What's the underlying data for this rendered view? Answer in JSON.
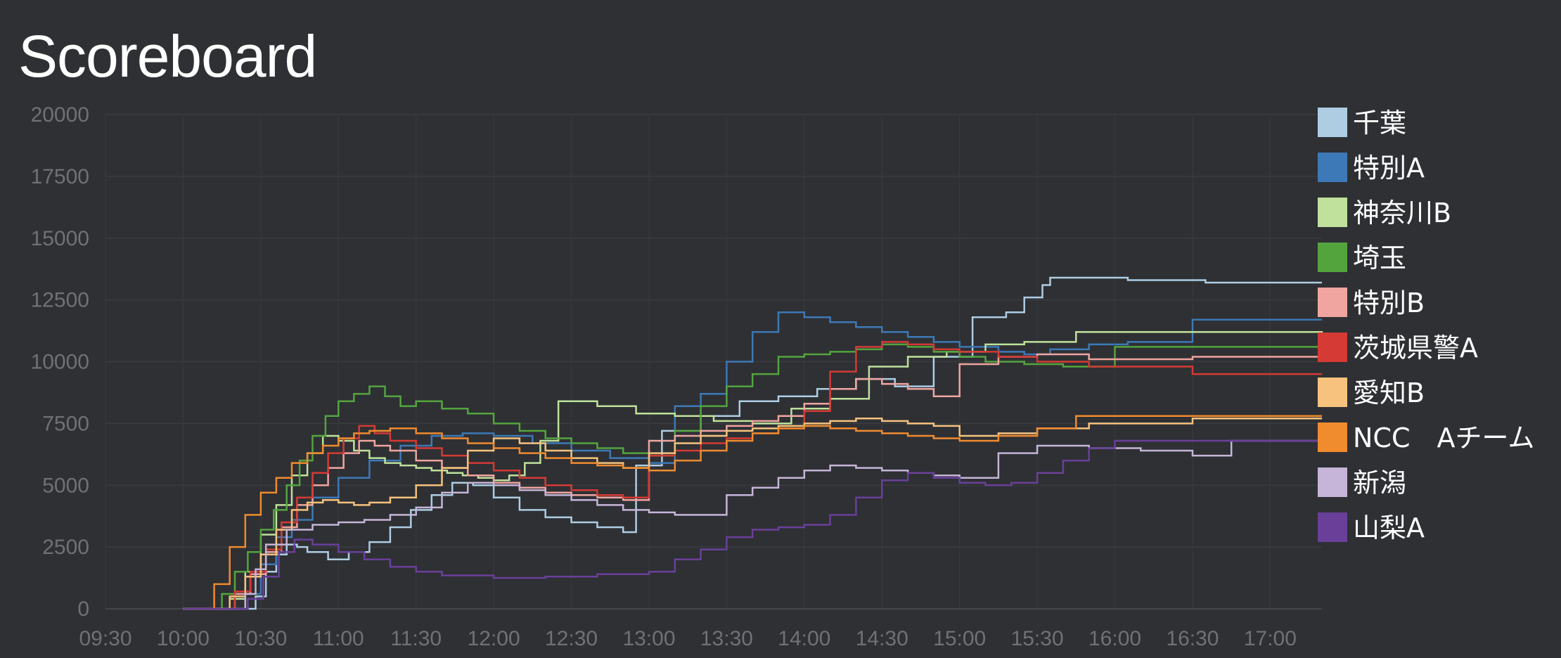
{
  "page": {
    "title": "Scoreboard"
  },
  "chart_data": {
    "type": "line",
    "title": "",
    "xlabel": "",
    "ylabel": "",
    "x_unit": "minutes after 00:00",
    "xlim": [
      570,
      1040
    ],
    "ylim": [
      0,
      20000
    ],
    "x_ticks": [
      570,
      600,
      630,
      660,
      690,
      720,
      750,
      780,
      810,
      840,
      870,
      900,
      930,
      960,
      990,
      1020
    ],
    "x_tick_labels": [
      "09:30",
      "10:00",
      "10:30",
      "11:00",
      "11:30",
      "12:00",
      "12:30",
      "13:00",
      "13:30",
      "14:00",
      "14:30",
      "15:00",
      "15:30",
      "16:00",
      "16:30",
      "17:00"
    ],
    "y_ticks": [
      0,
      2500,
      5000,
      7500,
      10000,
      12500,
      15000,
      17500,
      20000
    ],
    "y_tick_labels": [
      "0",
      "2500",
      "5000",
      "7500",
      "10000",
      "12500",
      "15000",
      "17500",
      "20000"
    ],
    "grid": true,
    "legend_position": "right",
    "step": true,
    "series": [
      {
        "name": "千葉",
        "color": "#aecde3",
        "x": [
          600,
          628,
          632,
          636,
          640,
          644,
          648,
          656,
          664,
          672,
          680,
          688,
          696,
          704,
          712,
          720,
          730,
          740,
          750,
          760,
          770,
          775,
          785,
          800,
          815,
          830,
          845,
          860,
          875,
          890,
          905,
          918,
          925,
          932,
          935,
          945,
          965,
          995,
          1040
        ],
        "y": [
          0,
          500,
          1500,
          2200,
          2600,
          2500,
          2300,
          2000,
          2300,
          2700,
          3300,
          4000,
          4600,
          5100,
          5000,
          4500,
          4000,
          3700,
          3500,
          3300,
          3100,
          5800,
          7200,
          7800,
          8400,
          8600,
          8900,
          9300,
          9000,
          10200,
          11800,
          12000,
          12600,
          13100,
          13400,
          13400,
          13300,
          13200,
          13200
        ]
      },
      {
        "name": "特別A",
        "color": "#3d79b6",
        "x": [
          600,
          624,
          630,
          636,
          642,
          650,
          660,
          672,
          684,
          696,
          708,
          720,
          735,
          750,
          765,
          780,
          790,
          800,
          810,
          820,
          830,
          840,
          850,
          860,
          870,
          880,
          890,
          900,
          915,
          925,
          935,
          950,
          965,
          990,
          1040
        ],
        "y": [
          0,
          600,
          1800,
          2900,
          3600,
          4500,
          5300,
          6000,
          6600,
          7000,
          7100,
          7000,
          6700,
          6400,
          6100,
          5900,
          8200,
          8700,
          10000,
          11200,
          12000,
          11800,
          11600,
          11400,
          11200,
          11000,
          10800,
          10600,
          10400,
          10300,
          10500,
          10700,
          10800,
          11700,
          11700
        ]
      },
      {
        "name": "神奈川B",
        "color": "#bfe19b",
        "x": [
          600,
          618,
          624,
          630,
          636,
          642,
          648,
          654,
          660,
          666,
          672,
          678,
          684,
          690,
          696,
          702,
          708,
          714,
          720,
          726,
          732,
          738,
          745,
          760,
          775,
          790,
          805,
          820,
          835,
          850,
          865,
          880,
          895,
          910,
          925,
          945,
          1040
        ],
        "y": [
          0,
          400,
          1500,
          3000,
          4200,
          5400,
          6300,
          7000,
          6800,
          6400,
          6100,
          5900,
          5800,
          5700,
          5600,
          5500,
          5400,
          5300,
          5200,
          5400,
          5900,
          6800,
          8400,
          8200,
          7900,
          7800,
          7600,
          7500,
          8100,
          8500,
          9800,
          10200,
          10400,
          10700,
          10800,
          11200,
          11000
        ]
      },
      {
        "name": "埼玉",
        "color": "#54a43e",
        "x": [
          600,
          615,
          620,
          625,
          630,
          635,
          640,
          645,
          650,
          655,
          660,
          666,
          672,
          678,
          684,
          690,
          700,
          710,
          720,
          730,
          740,
          750,
          760,
          770,
          780,
          790,
          800,
          810,
          820,
          830,
          840,
          850,
          860,
          870,
          880,
          890,
          900,
          910,
          925,
          940,
          960,
          990,
          1040
        ],
        "y": [
          0,
          600,
          1500,
          2300,
          3200,
          4000,
          5000,
          6000,
          7000,
          7800,
          8400,
          8700,
          9000,
          8600,
          8200,
          8400,
          8100,
          7900,
          7500,
          7200,
          6900,
          6700,
          6500,
          6300,
          6200,
          7200,
          8200,
          9000,
          9500,
          10200,
          10300,
          10400,
          10500,
          10700,
          10600,
          10400,
          10200,
          10000,
          9900,
          9800,
          10600,
          10600,
          10600
        ]
      },
      {
        "name": "特別B",
        "color": "#f0a5a0",
        "x": [
          600,
          620,
          626,
          632,
          638,
          644,
          650,
          656,
          662,
          668,
          674,
          680,
          690,
          700,
          710,
          720,
          730,
          740,
          750,
          760,
          770,
          780,
          790,
          800,
          810,
          820,
          830,
          840,
          850,
          860,
          870,
          880,
          890,
          900,
          915,
          930,
          950,
          990,
          1040
        ],
        "y": [
          0,
          600,
          1400,
          2300,
          3300,
          4200,
          5000,
          5700,
          6300,
          6800,
          6600,
          6400,
          6000,
          5700,
          5400,
          5100,
          4900,
          4700,
          4600,
          4500,
          4400,
          6800,
          7000,
          7200,
          7400,
          7600,
          7800,
          8300,
          8900,
          9300,
          9100,
          8900,
          8600,
          9900,
          10200,
          10300,
          10100,
          10200,
          10200
        ]
      },
      {
        "name": "茨城県警A",
        "color": "#d53a34",
        "x": [
          600,
          620,
          626,
          632,
          638,
          644,
          650,
          656,
          662,
          668,
          674,
          680,
          690,
          700,
          710,
          720,
          730,
          740,
          750,
          760,
          770,
          780,
          790,
          800,
          810,
          820,
          830,
          840,
          850,
          860,
          870,
          880,
          890,
          900,
          915,
          930,
          950,
          990,
          1040
        ],
        "y": [
          0,
          700,
          1500,
          2400,
          3500,
          4500,
          5500,
          6300,
          6900,
          7400,
          7100,
          6800,
          6500,
          6200,
          5900,
          5600,
          5300,
          5000,
          4800,
          4600,
          4500,
          6200,
          6400,
          6700,
          6900,
          7100,
          7300,
          8000,
          9600,
          10600,
          10800,
          10700,
          10500,
          10400,
          10200,
          10000,
          9800,
          9500,
          9500
        ]
      },
      {
        "name": "愛知B",
        "color": "#f6c27d",
        "x": [
          600,
          618,
          624,
          630,
          636,
          642,
          648,
          654,
          660,
          666,
          672,
          680,
          690,
          700,
          710,
          720,
          730,
          740,
          750,
          760,
          770,
          780,
          790,
          800,
          810,
          820,
          830,
          840,
          850,
          860,
          870,
          880,
          890,
          900,
          915,
          930,
          950,
          990,
          1040
        ],
        "y": [
          0,
          500,
          1300,
          2200,
          3200,
          4000,
          4300,
          4400,
          4300,
          4200,
          4300,
          4500,
          5000,
          5700,
          6400,
          6900,
          6700,
          6400,
          6100,
          5900,
          5700,
          6300,
          6700,
          7000,
          7200,
          7300,
          7400,
          7500,
          7600,
          7700,
          7600,
          7500,
          7400,
          7000,
          7100,
          7300,
          7500,
          7700,
          7700
        ]
      },
      {
        "name": "NCC　Aチーム",
        "color": "#f08b2e",
        "x": [
          600,
          612,
          618,
          624,
          630,
          636,
          642,
          648,
          654,
          660,
          666,
          672,
          680,
          690,
          700,
          710,
          720,
          730,
          740,
          750,
          760,
          770,
          780,
          790,
          800,
          810,
          820,
          830,
          840,
          850,
          860,
          870,
          880,
          890,
          900,
          915,
          930,
          945,
          990,
          1040
        ],
        "y": [
          0,
          1000,
          2500,
          3800,
          4700,
          5300,
          5900,
          6300,
          6600,
          6900,
          7100,
          7200,
          7300,
          7100,
          6900,
          6700,
          6500,
          6300,
          6100,
          5900,
          5800,
          5700,
          5600,
          6000,
          6400,
          6800,
          7100,
          7300,
          7400,
          7300,
          7200,
          7100,
          7000,
          6900,
          6800,
          7000,
          7300,
          7800,
          7800,
          7800
        ]
      },
      {
        "name": "新潟",
        "color": "#c6b5d8",
        "x": [
          600,
          624,
          628,
          632,
          640,
          650,
          660,
          670,
          680,
          690,
          700,
          710,
          720,
          730,
          740,
          750,
          760,
          770,
          780,
          790,
          800,
          810,
          820,
          830,
          840,
          850,
          860,
          870,
          880,
          890,
          900,
          915,
          930,
          950,
          970,
          990,
          1005,
          1040
        ],
        "y": [
          0,
          600,
          1600,
          2600,
          3200,
          3400,
          3500,
          3600,
          3800,
          4100,
          4700,
          5100,
          5000,
          4800,
          4600,
          4400,
          4200,
          4000,
          3900,
          3800,
          3800,
          4600,
          4900,
          5300,
          5600,
          5800,
          5700,
          5600,
          5500,
          5400,
          5300,
          6300,
          6600,
          6500,
          6400,
          6200,
          6800,
          6800
        ]
      },
      {
        "name": "山梨A",
        "color": "#6a3f9a",
        "x": [
          600,
          625,
          631,
          637,
          643,
          650,
          660,
          670,
          680,
          690,
          700,
          720,
          740,
          760,
          780,
          790,
          800,
          810,
          820,
          830,
          840,
          850,
          860,
          870,
          880,
          890,
          900,
          910,
          920,
          930,
          940,
          950,
          960,
          1040
        ],
        "y": [
          0,
          400,
          1300,
          2300,
          2800,
          2600,
          2300,
          2000,
          1700,
          1500,
          1350,
          1250,
          1300,
          1400,
          1500,
          2000,
          2400,
          2900,
          3200,
          3300,
          3400,
          3800,
          4500,
          5200,
          5500,
          5300,
          5100,
          5000,
          5100,
          5500,
          6000,
          6500,
          6800,
          6800
        ]
      }
    ]
  }
}
